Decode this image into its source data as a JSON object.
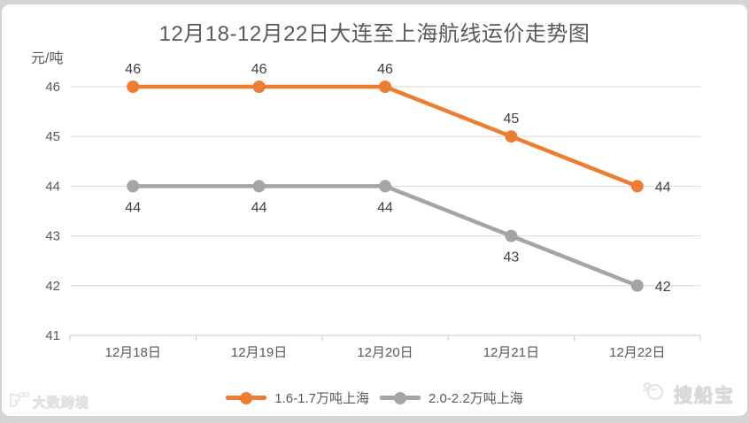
{
  "title": "12月18-12月22日大连至上海航线运价走势图",
  "chart_data": {
    "type": "line",
    "categories": [
      "12月18日",
      "12月19日",
      "12月20日",
      "12月21日",
      "12月22日"
    ],
    "series": [
      {
        "name": "1.6-1.7万吨上海",
        "values": [
          46,
          46,
          46,
          45,
          44
        ],
        "color": "#ED7D31",
        "label_position": "above",
        "last_label_position": "right"
      },
      {
        "name": "2.0-2.2万吨上海",
        "values": [
          44,
          44,
          44,
          43,
          42
        ],
        "color": "#A5A5A5",
        "label_position": "below",
        "last_label_position": "right"
      }
    ],
    "ylabel": "元/吨",
    "ylim": [
      41,
      46
    ],
    "y_ticks": [
      46,
      45,
      44,
      43,
      42,
      41
    ],
    "grid": true,
    "legend_position": "bottom",
    "colors": {
      "gridline": "#D9D9D9",
      "axis_line": "#C9C9C9",
      "axis_text": "#595959",
      "data_label": "#404040"
    }
  },
  "watermarks": {
    "bottom_left": "大数跨境",
    "bottom_right": "搜船宝"
  }
}
